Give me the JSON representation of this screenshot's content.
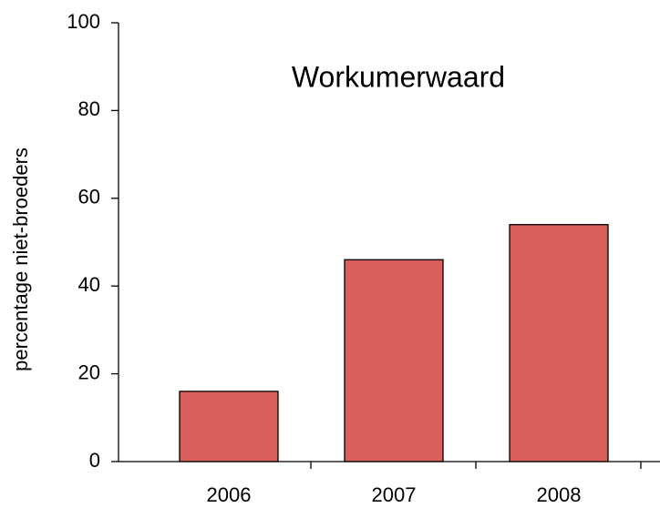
{
  "chart_data": {
    "type": "bar",
    "title": "Workumerwaard",
    "y_label": "percentage niet-broeders",
    "categories": [
      "2006",
      "2007",
      "2008"
    ],
    "values": [
      16,
      46,
      54
    ],
    "color": "#d9605a",
    "ylim": [
      0,
      100
    ],
    "yticks": [
      0,
      20,
      40,
      60,
      80,
      100
    ],
    "grid": false
  }
}
